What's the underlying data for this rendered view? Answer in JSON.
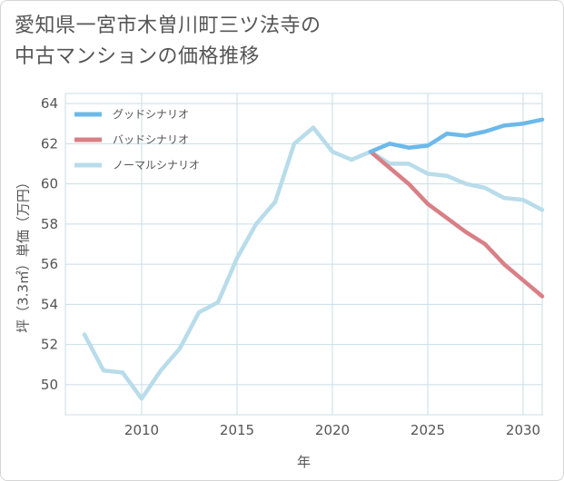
{
  "title_line1": "愛知県一宮市木曽川町三ツ法寺の",
  "title_line2": "中古マンションの価格推移",
  "colors": {
    "good": "#6cb9ea",
    "bad": "#d97f86",
    "normal": "#b8dcea",
    "grid": "#c9dde6",
    "axis": "#555555"
  },
  "chart_data": {
    "type": "line",
    "xlabel": "年",
    "ylabel": "坪（3.3㎡）単価（万円）",
    "xlim": [
      2006,
      2031
    ],
    "ylim": [
      48.5,
      64.5
    ],
    "xticks": [
      2010,
      2015,
      2020,
      2025,
      2030
    ],
    "yticks": [
      50,
      52,
      54,
      56,
      58,
      60,
      62,
      64
    ],
    "legend_position": "top-left",
    "grid": true,
    "series": [
      {
        "name": "グッドシナリオ",
        "color_key": "good",
        "x": [
          2022,
          2023,
          2024,
          2025,
          2026,
          2027,
          2028,
          2029,
          2030,
          2031
        ],
        "y": [
          61.6,
          62.0,
          61.8,
          61.9,
          62.5,
          62.4,
          62.6,
          62.9,
          63.0,
          63.2
        ]
      },
      {
        "name": "バッドシナリオ",
        "color_key": "bad",
        "x": [
          2022,
          2023,
          2024,
          2025,
          2026,
          2027,
          2028,
          2029,
          2030,
          2031
        ],
        "y": [
          61.6,
          60.8,
          60.0,
          59.0,
          58.3,
          57.6,
          57.0,
          56.0,
          55.2,
          54.4
        ]
      },
      {
        "name": "ノーマルシナリオ",
        "color_key": "normal",
        "x": [
          2007,
          2008,
          2009,
          2010,
          2011,
          2012,
          2013,
          2014,
          2015,
          2016,
          2017,
          2018,
          2019,
          2020,
          2021,
          2022,
          2023,
          2024,
          2025,
          2026,
          2027,
          2028,
          2029,
          2030,
          2031
        ],
        "y": [
          52.5,
          50.7,
          50.6,
          49.3,
          50.7,
          51.8,
          53.6,
          54.1,
          56.3,
          58.0,
          59.1,
          62.0,
          62.8,
          61.6,
          61.2,
          61.6,
          61.0,
          61.0,
          60.5,
          60.4,
          60.0,
          59.8,
          59.3,
          59.2,
          58.7
        ]
      }
    ]
  }
}
